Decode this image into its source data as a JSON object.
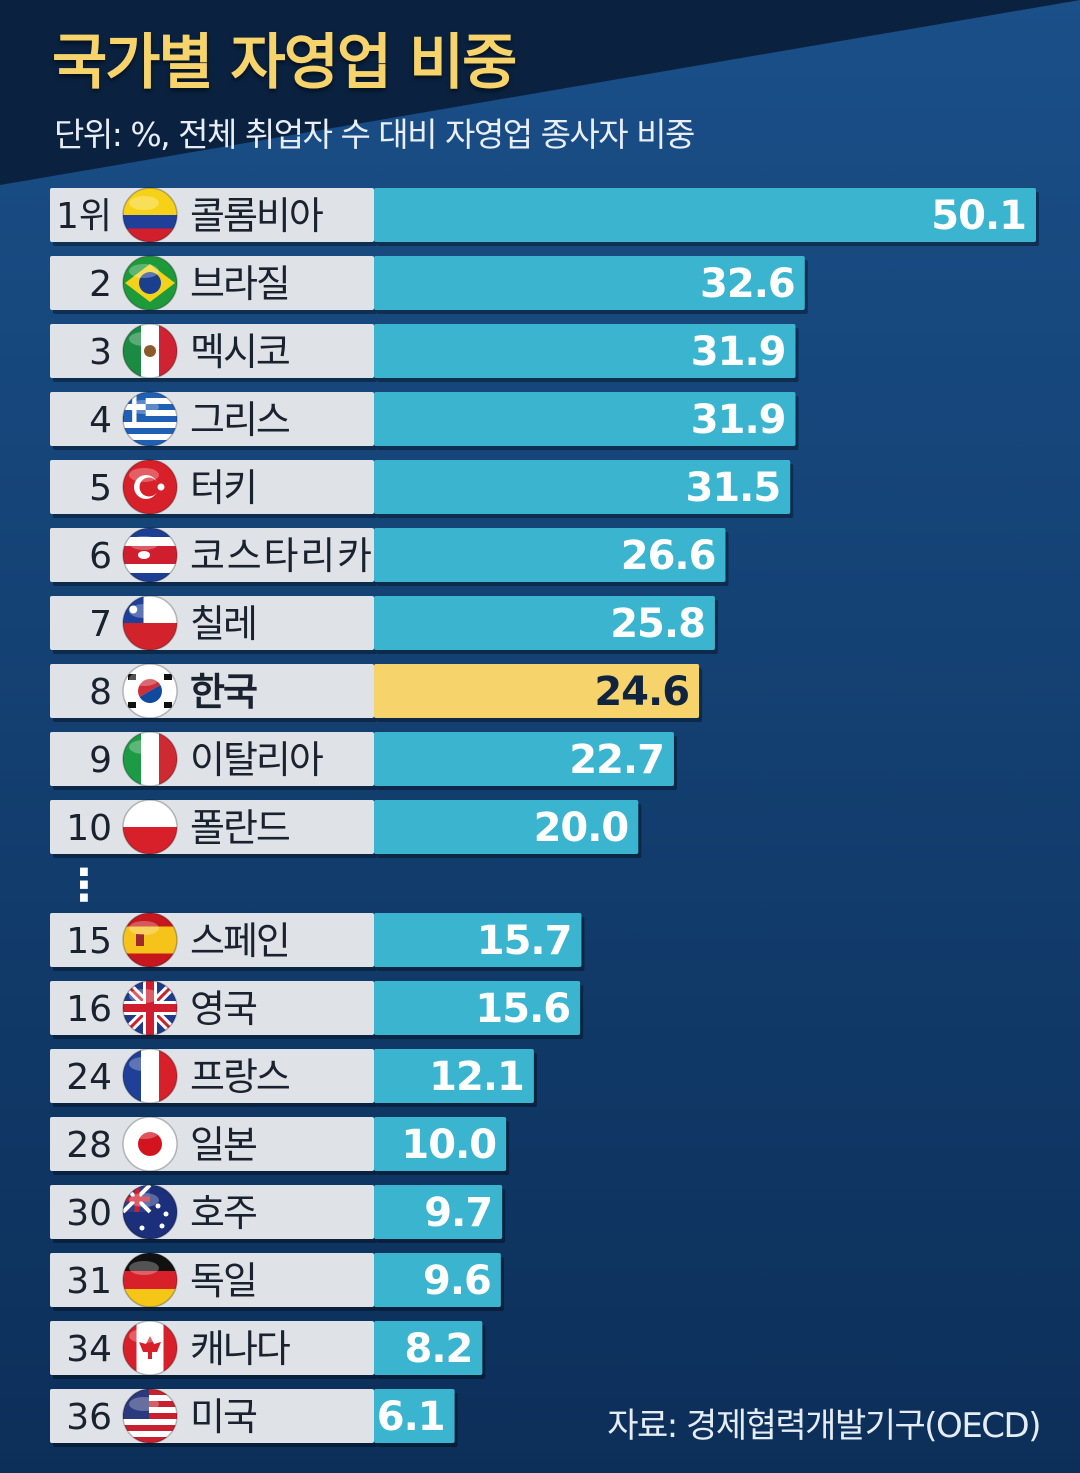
{
  "chart_data": {
    "type": "bar",
    "orientation": "horizontal",
    "title": "국가별 자영업 비중",
    "subtitle": "단위: %, 전체 취업자 수 대비 자영업 종사자 비중",
    "source": "자료: 경제협력개발기구(OECD)",
    "xlim": [
      0,
      50.1
    ],
    "ellipsis": "⋮",
    "colors": {
      "bar": "#3bb5cf",
      "highlight_bar": "#f6d36b",
      "label_panel": "#dfe2e7",
      "background": "#0f3a6b",
      "title": "#f6d36b"
    },
    "rows": [
      {
        "rank": "1위",
        "country": "콜롬비아",
        "value": 50.1,
        "value_label": "50.1",
        "flag": "colombia-flag-icon"
      },
      {
        "rank": "2",
        "country": "브라질",
        "value": 32.6,
        "value_label": "32.6",
        "flag": "brazil-flag-icon"
      },
      {
        "rank": "3",
        "country": "멕시코",
        "value": 31.9,
        "value_label": "31.9",
        "flag": "mexico-flag-icon"
      },
      {
        "rank": "4",
        "country": "그리스",
        "value": 31.9,
        "value_label": "31.9",
        "flag": "greece-flag-icon"
      },
      {
        "rank": "5",
        "country": "터키",
        "value": 31.5,
        "value_label": "31.5",
        "flag": "turkey-flag-icon"
      },
      {
        "rank": "6",
        "country": "코스타리카",
        "value": 26.6,
        "value_label": "26.6",
        "flag": "costa-rica-flag-icon"
      },
      {
        "rank": "7",
        "country": "칠레",
        "value": 25.8,
        "value_label": "25.8",
        "flag": "chile-flag-icon"
      },
      {
        "rank": "8",
        "country": "한국",
        "value": 24.6,
        "value_label": "24.6",
        "flag": "korea-flag-icon",
        "highlight": true
      },
      {
        "rank": "9",
        "country": "이탈리아",
        "value": 22.7,
        "value_label": "22.7",
        "flag": "italy-flag-icon"
      },
      {
        "rank": "10",
        "country": "폴란드",
        "value": 20.0,
        "value_label": "20.0",
        "flag": "poland-flag-icon"
      },
      {
        "rank": "15",
        "country": "스페인",
        "value": 15.7,
        "value_label": "15.7",
        "flag": "spain-flag-icon"
      },
      {
        "rank": "16",
        "country": "영국",
        "value": 15.6,
        "value_label": "15.6",
        "flag": "uk-flag-icon"
      },
      {
        "rank": "24",
        "country": "프랑스",
        "value": 12.1,
        "value_label": "12.1",
        "flag": "france-flag-icon"
      },
      {
        "rank": "28",
        "country": "일본",
        "value": 10.0,
        "value_label": "10.0",
        "flag": "japan-flag-icon"
      },
      {
        "rank": "30",
        "country": "호주",
        "value": 9.7,
        "value_label": "9.7",
        "flag": "australia-flag-icon"
      },
      {
        "rank": "31",
        "country": "독일",
        "value": 9.6,
        "value_label": "9.6",
        "flag": "germany-flag-icon"
      },
      {
        "rank": "34",
        "country": "캐나다",
        "value": 8.2,
        "value_label": "8.2",
        "flag": "canada-flag-icon"
      },
      {
        "rank": "36",
        "country": "미국",
        "value": 6.1,
        "value_label": "6.1",
        "flag": "usa-flag-icon"
      }
    ]
  }
}
